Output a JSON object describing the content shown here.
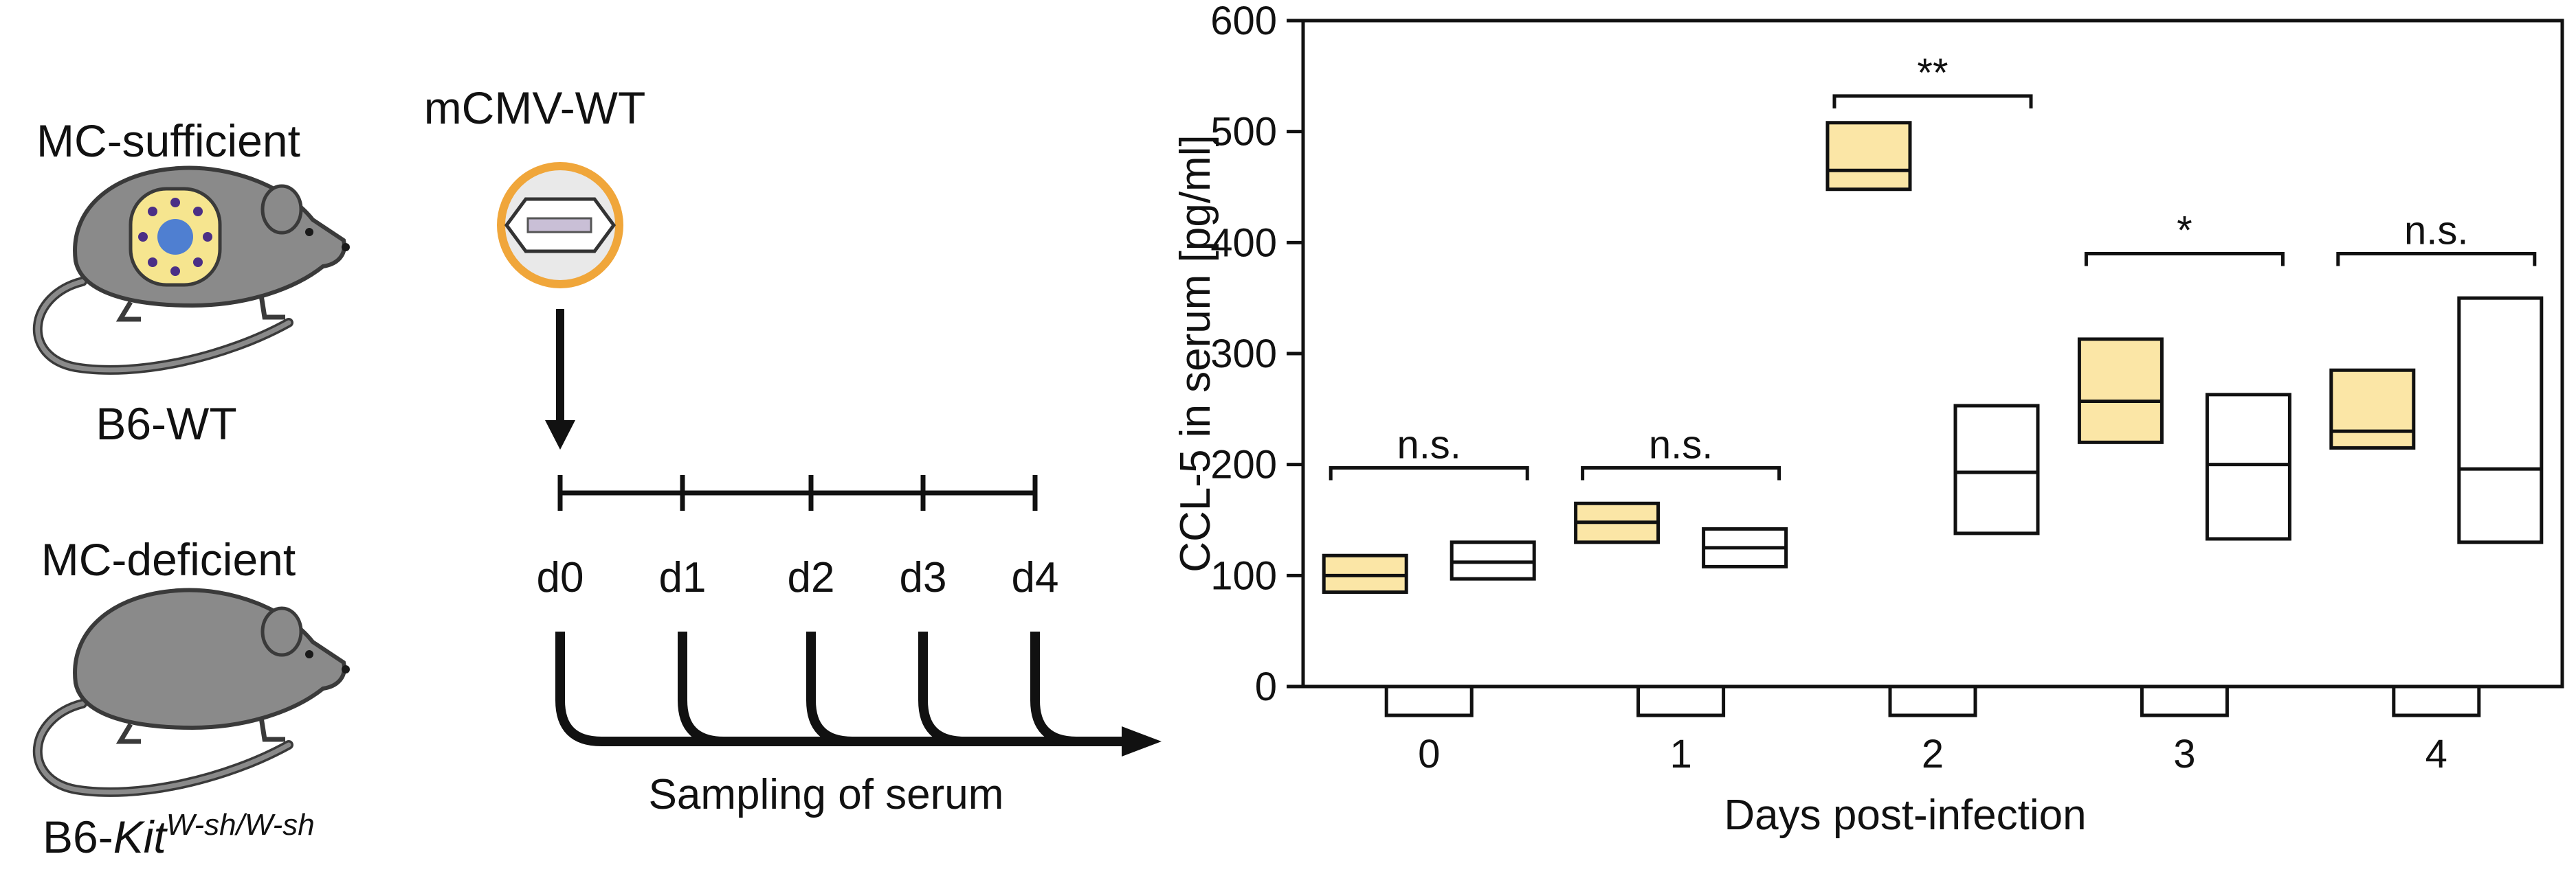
{
  "colors": {
    "mc_sufficient_fill": "#fbe6a6",
    "mouse_body": "#8a8a8a",
    "mouse_outline": "#3a3a3a",
    "virus_ring": "#f0a63a",
    "virus_inner": "#e9e9e9",
    "mast_cell_fill": "#f6e58f",
    "granule": "#4b2f86",
    "nucleus": "#4f7fd1",
    "black": "#000000"
  },
  "schematic": {
    "top_group_label": "MC-sufficient",
    "top_strain": "B6-WT",
    "bottom_group_label": "MC-deficient",
    "bottom_strain_prefix": "B6-",
    "bottom_strain_italic": "Kit",
    "bottom_strain_super": "W-sh/W-sh",
    "virus_label": "mCMV-WT",
    "timepoints": [
      "d0",
      "d1",
      "d2",
      "d3",
      "d4"
    ],
    "sampling_label": "Sampling of serum"
  },
  "chart_data": {
    "type": "box",
    "ylabel": "CCL-5 in serum [pg/ml]",
    "xlabel": "Days post-infection",
    "ylim": [
      0,
      600
    ],
    "yticks": [
      0,
      100,
      200,
      300,
      400,
      500,
      600
    ],
    "categories": [
      "0",
      "1",
      "2",
      "3",
      "4"
    ],
    "series": [
      {
        "name": "MC-sufficient (B6-WT)",
        "fill": "#fbe6a6",
        "boxes": [
          {
            "q1": 85,
            "median": 100,
            "q3": 118
          },
          {
            "q1": 130,
            "median": 148,
            "q3": 165
          },
          {
            "q1": 448,
            "median": 465,
            "q3": 508
          },
          {
            "q1": 220,
            "median": 257,
            "q3": 313
          },
          {
            "q1": 215,
            "median": 230,
            "q3": 285
          }
        ]
      },
      {
        "name": "MC-deficient (B6-Kit W-sh/W-sh)",
        "fill": "#ffffff",
        "boxes": [
          {
            "q1": 97,
            "median": 112,
            "q3": 130
          },
          {
            "q1": 108,
            "median": 125,
            "q3": 142
          },
          {
            "q1": 138,
            "median": 193,
            "q3": 253
          },
          {
            "q1": 133,
            "median": 200,
            "q3": 263
          },
          {
            "q1": 130,
            "median": 196,
            "q3": 350
          }
        ]
      }
    ],
    "significance": [
      {
        "category": "0",
        "label": "n.s.",
        "level": 197
      },
      {
        "category": "1",
        "label": "n.s.",
        "level": 197
      },
      {
        "category": "2",
        "label": "**",
        "level": 532
      },
      {
        "category": "3",
        "label": "*",
        "level": 390
      },
      {
        "category": "4",
        "label": "n.s.",
        "level": 390
      }
    ]
  }
}
